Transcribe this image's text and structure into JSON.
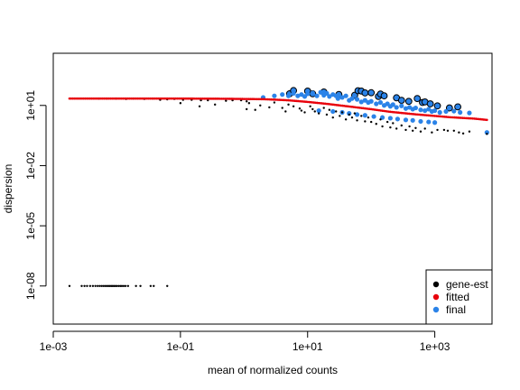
{
  "chart_data": {
    "type": "scatter",
    "xlabel": "mean of normalized counts",
    "ylabel": "dispersion",
    "x_scale": "log10",
    "y_scale": "log10",
    "xlim": [
      0.001,
      7943
    ],
    "ylim": [
      1.2589e-10,
      3981
    ],
    "x_ticks": [
      0.001,
      0.1,
      10,
      1000
    ],
    "x_tick_labels": [
      "1e-03",
      "1e-01",
      "1e+01",
      "1e+03"
    ],
    "y_ticks": [
      1e-08,
      1e-05,
      0.01,
      10
    ],
    "y_tick_labels": [
      "1e-08",
      "1e-05",
      "1e-02",
      "1e+01"
    ],
    "grid": false,
    "legend": {
      "position": "bottom-right",
      "entries": [
        {
          "label": "gene-est",
          "color": "#000000"
        },
        {
          "label": "fitted",
          "color": "#e8000b"
        },
        {
          "label": "final",
          "color": "#2b83e8"
        }
      ]
    },
    "series": [
      {
        "name": "gene-est",
        "color": "#000000",
        "points": [
          [
            0.0018,
            1e-08
          ],
          [
            0.0028,
            1e-08
          ],
          [
            0.0031,
            1e-08
          ],
          [
            0.0034,
            1e-08
          ],
          [
            0.0038,
            1e-08
          ],
          [
            0.0042,
            1e-08
          ],
          [
            0.0046,
            1e-08
          ],
          [
            0.005,
            1e-08
          ],
          [
            0.0054,
            1e-08
          ],
          [
            0.0058,
            1e-08
          ],
          [
            0.0062,
            1e-08
          ],
          [
            0.0066,
            1e-08
          ],
          [
            0.007,
            1e-08
          ],
          [
            0.0074,
            1e-08
          ],
          [
            0.0078,
            1e-08
          ],
          [
            0.0082,
            1e-08
          ],
          [
            0.0086,
            1e-08
          ],
          [
            0.009,
            1e-08
          ],
          [
            0.0095,
            1e-08
          ],
          [
            0.01,
            1e-08
          ],
          [
            0.0107,
            1e-08
          ],
          [
            0.0114,
            1e-08
          ],
          [
            0.012,
            1e-08
          ],
          [
            0.0128,
            1e-08
          ],
          [
            0.0137,
            1e-08
          ],
          [
            0.015,
            1e-08
          ],
          [
            0.02,
            1e-08
          ],
          [
            0.0235,
            1e-08
          ],
          [
            0.034,
            1e-08
          ],
          [
            0.038,
            1e-08
          ],
          [
            0.062,
            1e-08
          ],
          [
            0.0052,
            22
          ],
          [
            0.007,
            22
          ],
          [
            0.0098,
            22
          ],
          [
            0.014,
            21
          ],
          [
            0.018,
            22
          ],
          [
            0.027,
            21
          ],
          [
            0.037,
            22
          ],
          [
            0.048,
            19
          ],
          [
            0.062,
            20
          ],
          [
            0.08,
            21
          ],
          [
            0.11,
            19
          ],
          [
            0.15,
            19
          ],
          [
            0.21,
            18
          ],
          [
            0.27,
            18
          ],
          [
            0.52,
            17
          ],
          [
            0.66,
            18
          ],
          [
            0.9,
            18
          ],
          [
            1.1,
            16
          ],
          [
            0.1,
            13
          ],
          [
            0.2,
            9
          ],
          [
            0.35,
            11
          ],
          [
            1.2,
            13
          ],
          [
            1.8,
            10
          ],
          [
            1.1,
            6.5
          ],
          [
            1.5,
            6.0
          ],
          [
            2.5,
            8.0
          ],
          [
            3.0,
            14
          ],
          [
            4.0,
            7.5
          ],
          [
            4.5,
            5.0
          ],
          [
            5.0,
            11
          ],
          [
            6.0,
            9.0
          ],
          [
            7.5,
            7.0
          ],
          [
            8.0,
            5.5
          ],
          [
            9.0,
            4.5
          ],
          [
            11,
            9.0
          ],
          [
            12,
            6.5
          ],
          [
            13,
            5.0
          ],
          [
            15,
            4.0
          ],
          [
            18,
            7.5
          ],
          [
            20,
            3.5
          ],
          [
            22,
            6.0
          ],
          [
            25,
            2.5
          ],
          [
            28,
            5.0
          ],
          [
            32,
            3.0
          ],
          [
            35,
            4.5
          ],
          [
            40,
            2.0
          ],
          [
            45,
            3.5
          ],
          [
            50,
            2.5
          ],
          [
            55,
            4.0
          ],
          [
            60,
            1.8
          ],
          [
            70,
            3.0
          ],
          [
            80,
            1.6
          ],
          [
            90,
            2.5
          ],
          [
            100,
            1.5
          ],
          [
            120,
            1.2
          ],
          [
            140,
            2.0
          ],
          [
            150,
            0.9
          ],
          [
            180,
            1.5
          ],
          [
            200,
            0.8
          ],
          [
            220,
            1.3
          ],
          [
            250,
            0.7
          ],
          [
            300,
            1.0
          ],
          [
            350,
            0.6
          ],
          [
            400,
            0.9
          ],
          [
            450,
            0.55
          ],
          [
            500,
            0.75
          ],
          [
            600,
            0.5
          ],
          [
            700,
            0.7
          ],
          [
            900,
            0.45
          ],
          [
            1100,
            0.6
          ],
          [
            1400,
            0.6
          ],
          [
            1600,
            0.55
          ],
          [
            2000,
            0.55
          ],
          [
            2400,
            0.45
          ],
          [
            2800,
            0.4
          ],
          [
            3500,
            0.5
          ],
          [
            6600,
            0.38
          ]
        ]
      },
      {
        "name": "fitted",
        "color": "#e8000b",
        "curve": [
          [
            0.0018,
            22
          ],
          [
            0.01,
            22
          ],
          [
            0.1,
            22
          ],
          [
            0.5,
            21.5
          ],
          [
            1,
            21
          ],
          [
            2,
            20.5
          ],
          [
            3,
            19.5
          ],
          [
            5,
            18
          ],
          [
            10,
            15
          ],
          [
            20,
            12
          ],
          [
            50,
            8.5
          ],
          [
            100,
            6.5
          ],
          [
            200,
            4.8
          ],
          [
            500,
            3.6
          ],
          [
            1000,
            3.0
          ],
          [
            1700,
            2.6
          ],
          [
            2600,
            2.4
          ],
          [
            4200,
            2.2
          ],
          [
            6600,
            1.9
          ]
        ]
      },
      {
        "name": "final",
        "color": "#2b83e8",
        "points": [
          [
            2.0,
            25
          ],
          [
            3.0,
            30
          ],
          [
            4.0,
            35
          ],
          [
            5.0,
            30
          ],
          [
            6.0,
            40
          ],
          [
            7.0,
            30
          ],
          [
            8.0,
            35
          ],
          [
            9.0,
            28
          ],
          [
            10,
            38
          ],
          [
            12,
            42
          ],
          [
            14,
            30
          ],
          [
            16,
            45
          ],
          [
            18,
            32
          ],
          [
            20,
            40
          ],
          [
            22,
            28
          ],
          [
            25,
            35
          ],
          [
            28,
            30
          ],
          [
            30,
            22
          ],
          [
            35,
            25
          ],
          [
            40,
            30
          ],
          [
            45,
            18
          ],
          [
            50,
            22
          ],
          [
            60,
            20
          ],
          [
            70,
            15
          ],
          [
            80,
            18
          ],
          [
            90,
            14
          ],
          [
            100,
            16
          ],
          [
            120,
            12
          ],
          [
            140,
            14
          ],
          [
            160,
            10
          ],
          [
            180,
            12
          ],
          [
            200,
            9
          ],
          [
            220,
            11
          ],
          [
            250,
            8
          ],
          [
            300,
            9.5
          ],
          [
            350,
            7
          ],
          [
            400,
            8
          ],
          [
            450,
            6.5
          ],
          [
            500,
            7.5
          ],
          [
            600,
            6
          ],
          [
            700,
            5.5
          ],
          [
            800,
            6.5
          ],
          [
            900,
            5
          ],
          [
            1000,
            5.5
          ],
          [
            1200,
            4.5
          ],
          [
            1500,
            5.0
          ],
          [
            2000,
            5.2
          ],
          [
            2500,
            4.5
          ],
          [
            3500,
            4.2
          ],
          [
            6600,
            0.45
          ],
          [
            15,
            5.5
          ],
          [
            25,
            5.0
          ],
          [
            35,
            4.5
          ],
          [
            45,
            4.0
          ],
          [
            60,
            3.5
          ],
          [
            80,
            3.2
          ],
          [
            110,
            2.8
          ],
          [
            150,
            2.5
          ],
          [
            200,
            2.3
          ],
          [
            260,
            2.1
          ],
          [
            350,
            1.9
          ],
          [
            450,
            1.8
          ],
          [
            600,
            1.6
          ],
          [
            800,
            1.5
          ],
          [
            1000,
            1.4
          ]
        ],
        "outlined_points": [
          [
            5.2,
            38
          ],
          [
            6.0,
            55
          ],
          [
            10,
            52
          ],
          [
            12,
            38
          ],
          [
            18,
            47
          ],
          [
            31,
            35
          ],
          [
            55,
            32
          ],
          [
            62,
            54
          ],
          [
            70,
            52
          ],
          [
            80,
            42
          ],
          [
            100,
            43
          ],
          [
            130,
            28
          ],
          [
            140,
            37
          ],
          [
            160,
            30
          ],
          [
            250,
            24
          ],
          [
            300,
            18
          ],
          [
            390,
            16
          ],
          [
            530,
            22
          ],
          [
            640,
            14
          ],
          [
            700,
            15
          ],
          [
            850,
            12
          ],
          [
            1100,
            9.5
          ],
          [
            1700,
            7.5
          ],
          [
            2300,
            8.5
          ]
        ]
      }
    ]
  }
}
